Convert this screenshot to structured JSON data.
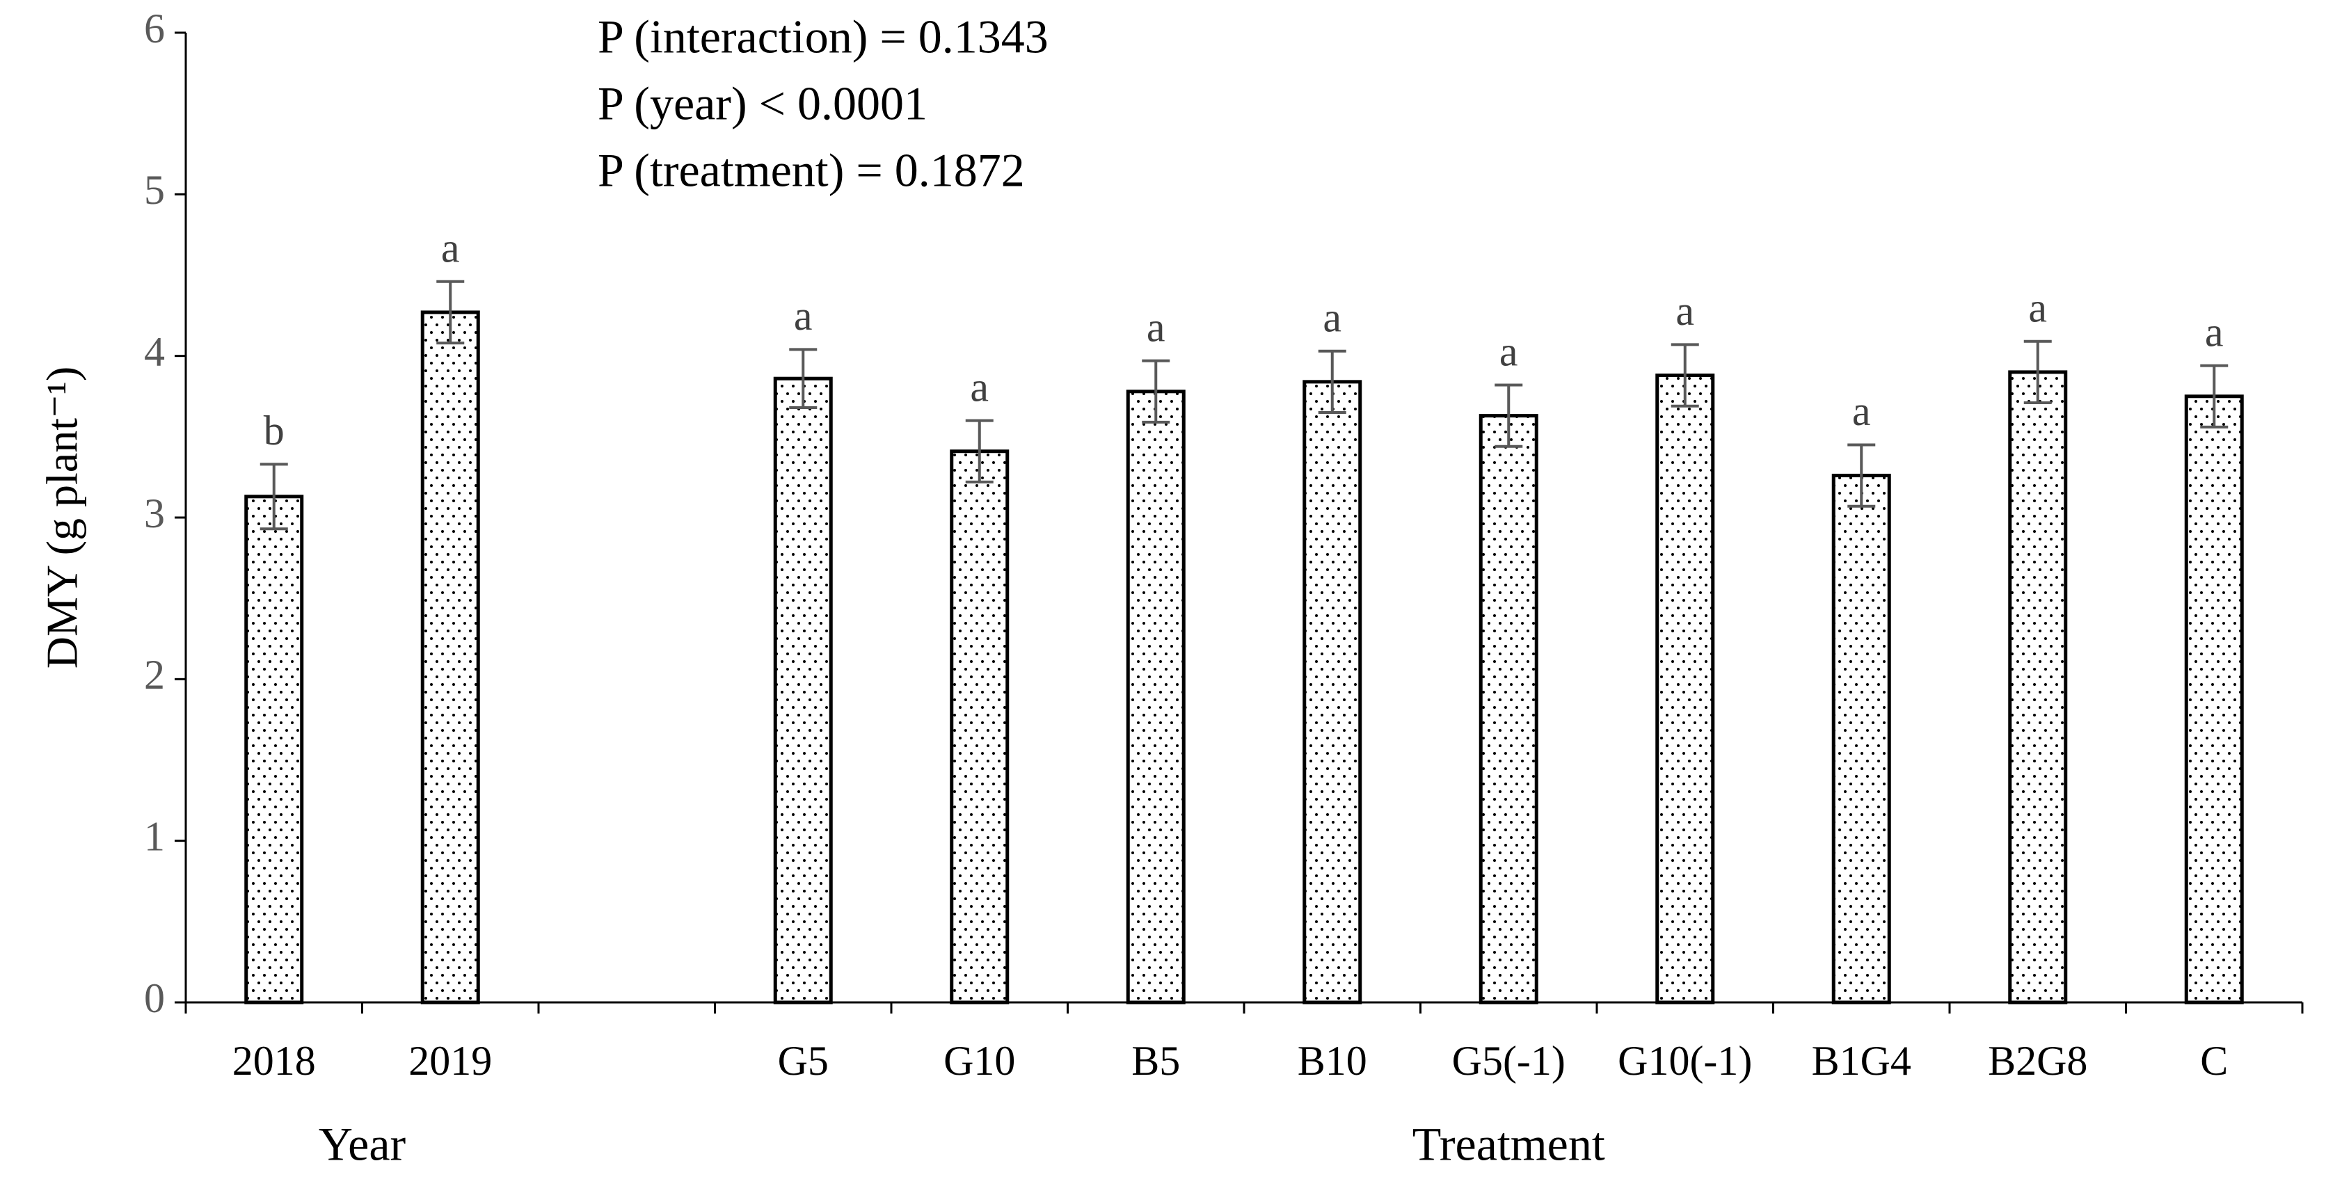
{
  "chart_data": {
    "type": "bar",
    "y_label": "DMY (g plant⁻¹)",
    "annotations": [
      "P (interaction) = 0.1343",
      "P (year) < 0.0001",
      "P (treatment) = 0.1872"
    ],
    "group_labels": [
      "Year",
      "Treatment"
    ],
    "categories": [
      "2018",
      "2019",
      null,
      "G5",
      "G10",
      "B5",
      "B10",
      "G5(-1)",
      "G10(-1)",
      "B1G4",
      "B2G8",
      "C"
    ],
    "values": [
      3.13,
      4.27,
      null,
      3.86,
      3.41,
      3.78,
      3.84,
      3.63,
      3.88,
      3.26,
      3.9,
      3.75
    ],
    "errors": [
      0.2,
      0.19,
      null,
      0.18,
      0.19,
      0.19,
      0.19,
      0.19,
      0.19,
      0.19,
      0.19,
      0.19
    ],
    "letters": [
      "b",
      "a",
      null,
      "a",
      "a",
      "a",
      "a",
      "a",
      "a",
      "a",
      "a",
      "a"
    ],
    "color": "#000000",
    "ylim": [
      0,
      6
    ],
    "yticks": [
      0,
      1,
      2,
      3,
      4,
      5,
      6
    ],
    "grid": false
  }
}
